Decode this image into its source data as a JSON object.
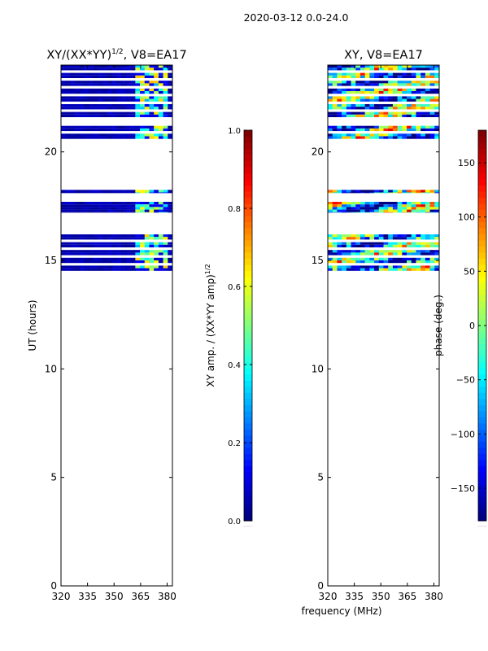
{
  "figure_title": "2020-03-12 0.0-24.0",
  "chart_data": [
    {
      "type": "heatmap",
      "title_main": "XY/(XX*YY)",
      "title_sup": "1/2",
      "title_rest": ", V8=EA17",
      "xlabel": "",
      "ylabel": "UT (hours)",
      "xlim": [
        320,
        383
      ],
      "ylim": [
        0,
        24
      ],
      "xticks": [
        320,
        335,
        350,
        365,
        380
      ],
      "yticks": [
        0,
        5,
        10,
        15,
        20
      ],
      "colormap": "jet",
      "colorbar": {
        "label_main": "XY amp. / (XX*YY amp)",
        "label_sup": "1/2",
        "range": [
          0.0,
          1.0
        ],
        "ticks": [
          0.0,
          0.2,
          0.4,
          0.6,
          0.8,
          1.0
        ],
        "tick_labels": [
          "0.0",
          "0.2",
          "0.4",
          "0.6",
          "0.8",
          "1.0"
        ],
        "dots": "......"
      },
      "data_blocks_hours": [
        [
          14.5,
          16.2
        ],
        [
          17.2,
          17.7
        ],
        [
          18.1,
          18.25
        ],
        [
          20.5,
          21.2
        ],
        [
          21.6,
          24.0
        ]
      ],
      "background_value": 0.0,
      "bright_band_MHz": [
        362,
        380
      ],
      "bright_value_range": [
        0.3,
        0.7
      ]
    },
    {
      "type": "heatmap",
      "title_main": "XY, V8=EA17",
      "title_sup": "",
      "title_rest": "",
      "xlabel": "frequency (MHz)",
      "ylabel": "",
      "xlim": [
        320,
        383
      ],
      "ylim": [
        0,
        24
      ],
      "xticks": [
        320,
        335,
        350,
        365,
        380
      ],
      "yticks": [
        0,
        5,
        10,
        15,
        20
      ],
      "colormap": "jet",
      "colorbar": {
        "label_main": "phase (deg.)",
        "label_sup": "",
        "range": [
          -180,
          180
        ],
        "ticks": [
          -150,
          -100,
          -50,
          0,
          50,
          100,
          150
        ],
        "tick_labels": [
          "−150",
          "−100",
          "−50",
          "0",
          "50",
          "100",
          "150"
        ],
        "dots": "......"
      },
      "data_blocks_hours": [
        [
          14.5,
          16.2
        ],
        [
          17.2,
          17.7
        ],
        [
          18.1,
          18.25
        ],
        [
          20.5,
          21.2
        ],
        [
          21.6,
          24.0
        ]
      ],
      "value_range": [
        -180,
        180
      ]
    }
  ]
}
